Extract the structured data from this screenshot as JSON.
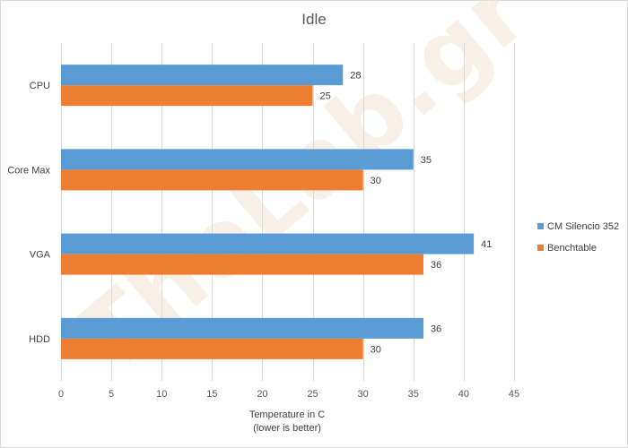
{
  "watermark": "TheLab.gr",
  "chart_data": {
    "type": "bar",
    "orientation": "horizontal",
    "title": "Idle",
    "xlabel_lines": [
      "Temperature  in C",
      "(lower is better)"
    ],
    "ylabel": "",
    "xlim": [
      0,
      45
    ],
    "xticks": [
      0,
      5,
      10,
      15,
      20,
      25,
      30,
      35,
      40,
      45
    ],
    "grid": true,
    "legend_position": "right",
    "categories": [
      "CPU",
      "Core Max",
      "VGA",
      "HDD"
    ],
    "series": [
      {
        "name": "CM Silencio 352",
        "color": "#5b9bd5",
        "values": [
          28,
          35,
          41,
          36
        ]
      },
      {
        "name": "Benchtable",
        "color": "#ed7d31",
        "values": [
          25,
          30,
          36,
          30
        ]
      }
    ]
  }
}
